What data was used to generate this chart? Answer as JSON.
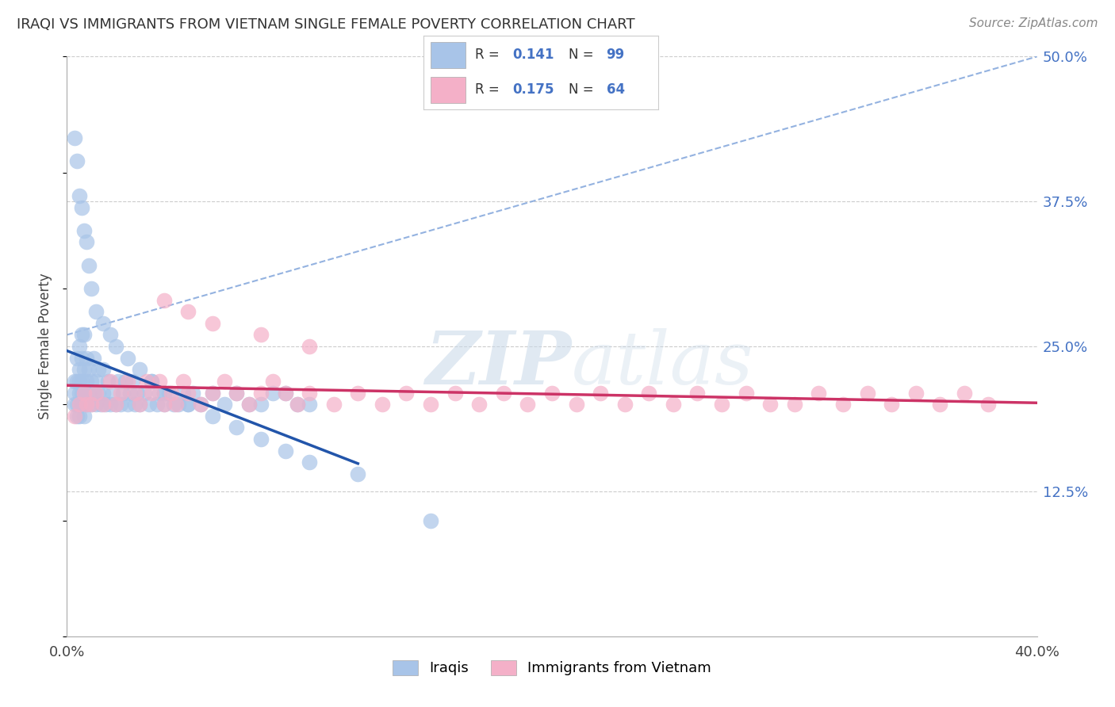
{
  "title": "IRAQI VS IMMIGRANTS FROM VIETNAM SINGLE FEMALE POVERTY CORRELATION CHART",
  "source": "Source: ZipAtlas.com",
  "ylabel": "Single Female Poverty",
  "watermark_zip": "ZIP",
  "watermark_atlas": "atlas",
  "xlim": [
    0.0,
    0.4
  ],
  "ylim": [
    0.0,
    0.5
  ],
  "xtick_positions": [
    0.0,
    0.1,
    0.2,
    0.3,
    0.4
  ],
  "xtick_labels": [
    "0.0%",
    "",
    "",
    "",
    "40.0%"
  ],
  "ytick_positions_right": [
    0.5,
    0.375,
    0.25,
    0.125
  ],
  "ytick_labels_right": [
    "50.0%",
    "37.5%",
    "25.0%",
    "12.5%"
  ],
  "iraqis_R": 0.141,
  "iraqis_N": 99,
  "vietnam_R": 0.175,
  "vietnam_N": 64,
  "iraqis_color": "#a8c4e8",
  "vietnam_color": "#f4b0c8",
  "iraqis_line_color": "#2255aa",
  "vietnam_line_color": "#cc3366",
  "dashed_line_color": "#88aadd",
  "background_color": "#ffffff",
  "grid_color": "#cccccc",
  "iraq_x": [
    0.003,
    0.003,
    0.003,
    0.004,
    0.004,
    0.004,
    0.004,
    0.005,
    0.005,
    0.005,
    0.005,
    0.005,
    0.005,
    0.006,
    0.006,
    0.006,
    0.006,
    0.006,
    0.007,
    0.007,
    0.007,
    0.007,
    0.008,
    0.008,
    0.008,
    0.009,
    0.009,
    0.01,
    0.01,
    0.011,
    0.011,
    0.012,
    0.012,
    0.013,
    0.013,
    0.014,
    0.015,
    0.015,
    0.016,
    0.017,
    0.018,
    0.019,
    0.02,
    0.021,
    0.022,
    0.023,
    0.024,
    0.025,
    0.026,
    0.027,
    0.028,
    0.029,
    0.03,
    0.032,
    0.034,
    0.035,
    0.037,
    0.038,
    0.04,
    0.042,
    0.044,
    0.046,
    0.048,
    0.05,
    0.052,
    0.055,
    0.06,
    0.065,
    0.07,
    0.075,
    0.08,
    0.085,
    0.09,
    0.095,
    0.1,
    0.003,
    0.004,
    0.005,
    0.006,
    0.007,
    0.008,
    0.009,
    0.01,
    0.012,
    0.015,
    0.018,
    0.02,
    0.025,
    0.03,
    0.035,
    0.04,
    0.05,
    0.06,
    0.07,
    0.08,
    0.09,
    0.1,
    0.12,
    0.15
  ],
  "iraq_y": [
    0.2,
    0.21,
    0.22,
    0.19,
    0.2,
    0.22,
    0.24,
    0.19,
    0.2,
    0.21,
    0.22,
    0.23,
    0.25,
    0.2,
    0.21,
    0.22,
    0.24,
    0.26,
    0.19,
    0.21,
    0.23,
    0.26,
    0.2,
    0.22,
    0.24,
    0.21,
    0.23,
    0.2,
    0.22,
    0.21,
    0.24,
    0.2,
    0.22,
    0.21,
    0.23,
    0.2,
    0.21,
    0.23,
    0.2,
    0.22,
    0.2,
    0.21,
    0.2,
    0.22,
    0.2,
    0.21,
    0.22,
    0.2,
    0.21,
    0.22,
    0.2,
    0.21,
    0.2,
    0.21,
    0.2,
    0.22,
    0.2,
    0.21,
    0.2,
    0.21,
    0.2,
    0.2,
    0.21,
    0.2,
    0.21,
    0.2,
    0.21,
    0.2,
    0.21,
    0.2,
    0.2,
    0.21,
    0.21,
    0.2,
    0.2,
    0.43,
    0.41,
    0.38,
    0.37,
    0.35,
    0.34,
    0.32,
    0.3,
    0.28,
    0.27,
    0.26,
    0.25,
    0.24,
    0.23,
    0.22,
    0.21,
    0.2,
    0.19,
    0.18,
    0.17,
    0.16,
    0.15,
    0.14,
    0.1
  ],
  "viet_x": [
    0.003,
    0.005,
    0.007,
    0.008,
    0.01,
    0.012,
    0.015,
    0.018,
    0.02,
    0.022,
    0.025,
    0.028,
    0.03,
    0.033,
    0.035,
    0.038,
    0.04,
    0.043,
    0.045,
    0.048,
    0.05,
    0.055,
    0.06,
    0.065,
    0.07,
    0.075,
    0.08,
    0.085,
    0.09,
    0.095,
    0.1,
    0.11,
    0.12,
    0.13,
    0.14,
    0.15,
    0.16,
    0.17,
    0.18,
    0.19,
    0.2,
    0.21,
    0.22,
    0.23,
    0.24,
    0.25,
    0.26,
    0.27,
    0.28,
    0.29,
    0.3,
    0.31,
    0.32,
    0.33,
    0.34,
    0.35,
    0.36,
    0.37,
    0.38,
    0.04,
    0.05,
    0.06,
    0.08,
    0.1
  ],
  "viet_y": [
    0.19,
    0.2,
    0.21,
    0.2,
    0.2,
    0.21,
    0.2,
    0.22,
    0.2,
    0.21,
    0.22,
    0.21,
    0.2,
    0.22,
    0.21,
    0.22,
    0.2,
    0.21,
    0.2,
    0.22,
    0.21,
    0.2,
    0.21,
    0.22,
    0.21,
    0.2,
    0.21,
    0.22,
    0.21,
    0.2,
    0.21,
    0.2,
    0.21,
    0.2,
    0.21,
    0.2,
    0.21,
    0.2,
    0.21,
    0.2,
    0.21,
    0.2,
    0.21,
    0.2,
    0.21,
    0.2,
    0.21,
    0.2,
    0.21,
    0.2,
    0.2,
    0.21,
    0.2,
    0.21,
    0.2,
    0.21,
    0.2,
    0.21,
    0.2,
    0.29,
    0.28,
    0.27,
    0.26,
    0.25
  ]
}
